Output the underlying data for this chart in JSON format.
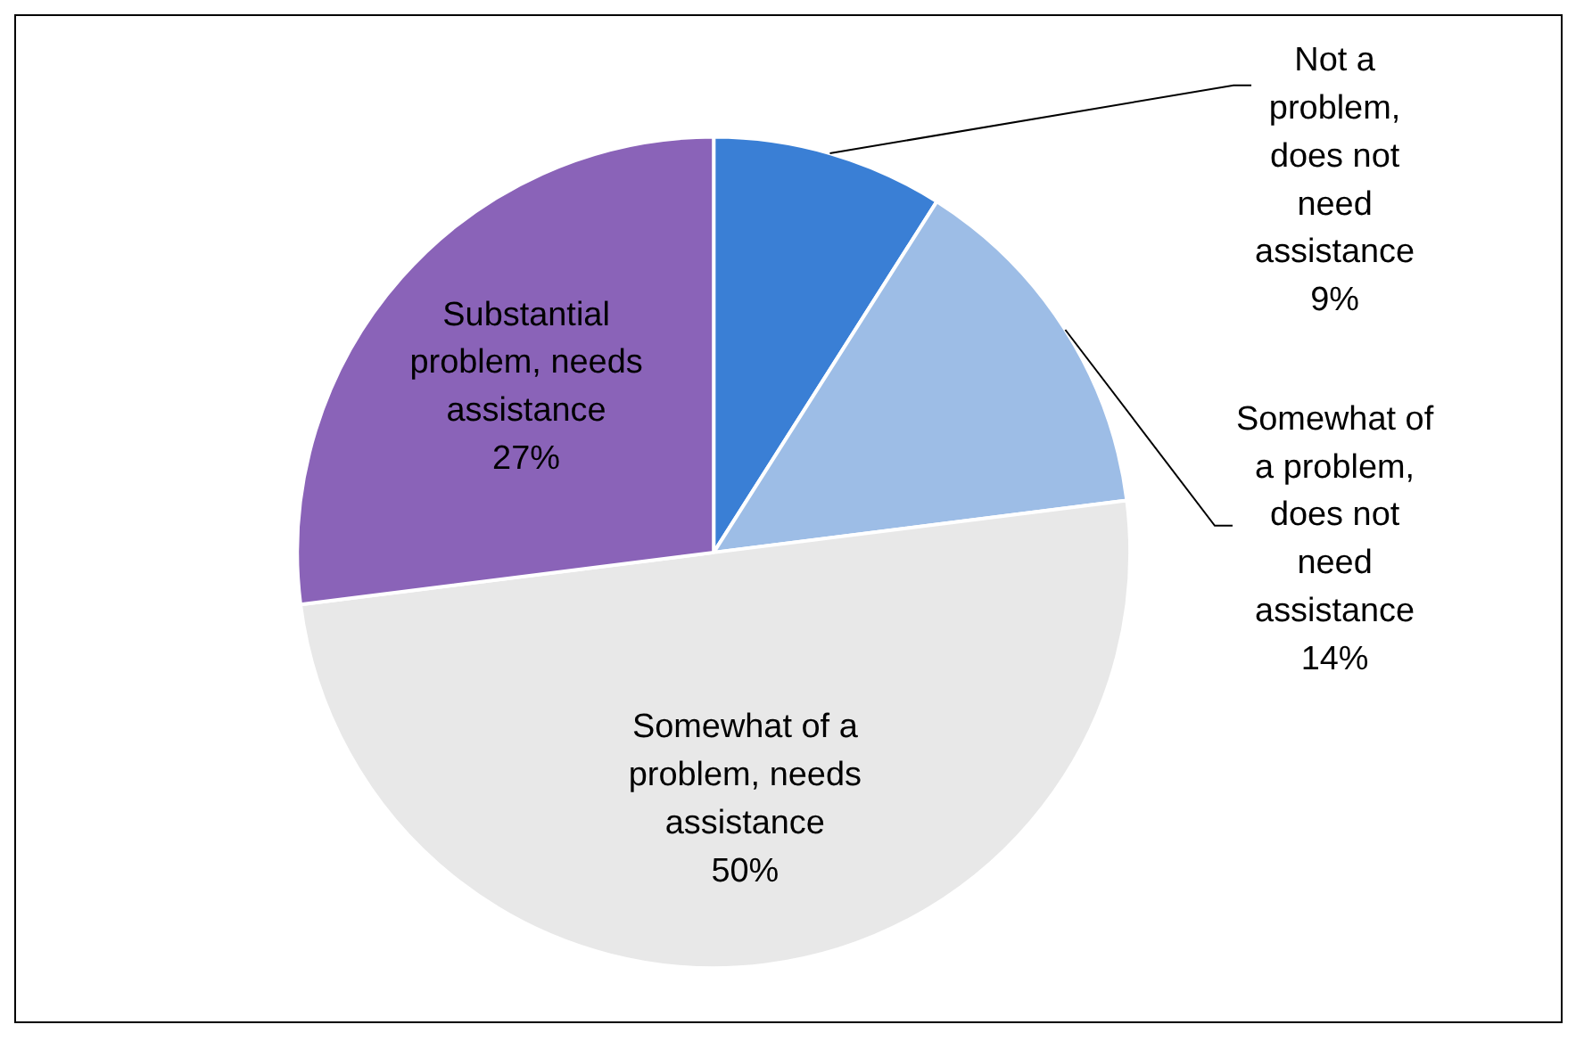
{
  "chart_data": {
    "type": "pie",
    "categories": [
      "Not a problem, does not need assistance",
      "Somewhat of a problem, does not need assistance",
      "Somewhat of a problem, needs assistance",
      "Substantial problem, needs assistance"
    ],
    "values": [
      9,
      14,
      50,
      27
    ],
    "colors": [
      "#3a7fd5",
      "#9dbde6",
      "#e8e8e8",
      "#8a63b8"
    ],
    "value_labels": [
      "9%",
      "14%",
      "50%",
      "27%"
    ],
    "legend": false
  }
}
